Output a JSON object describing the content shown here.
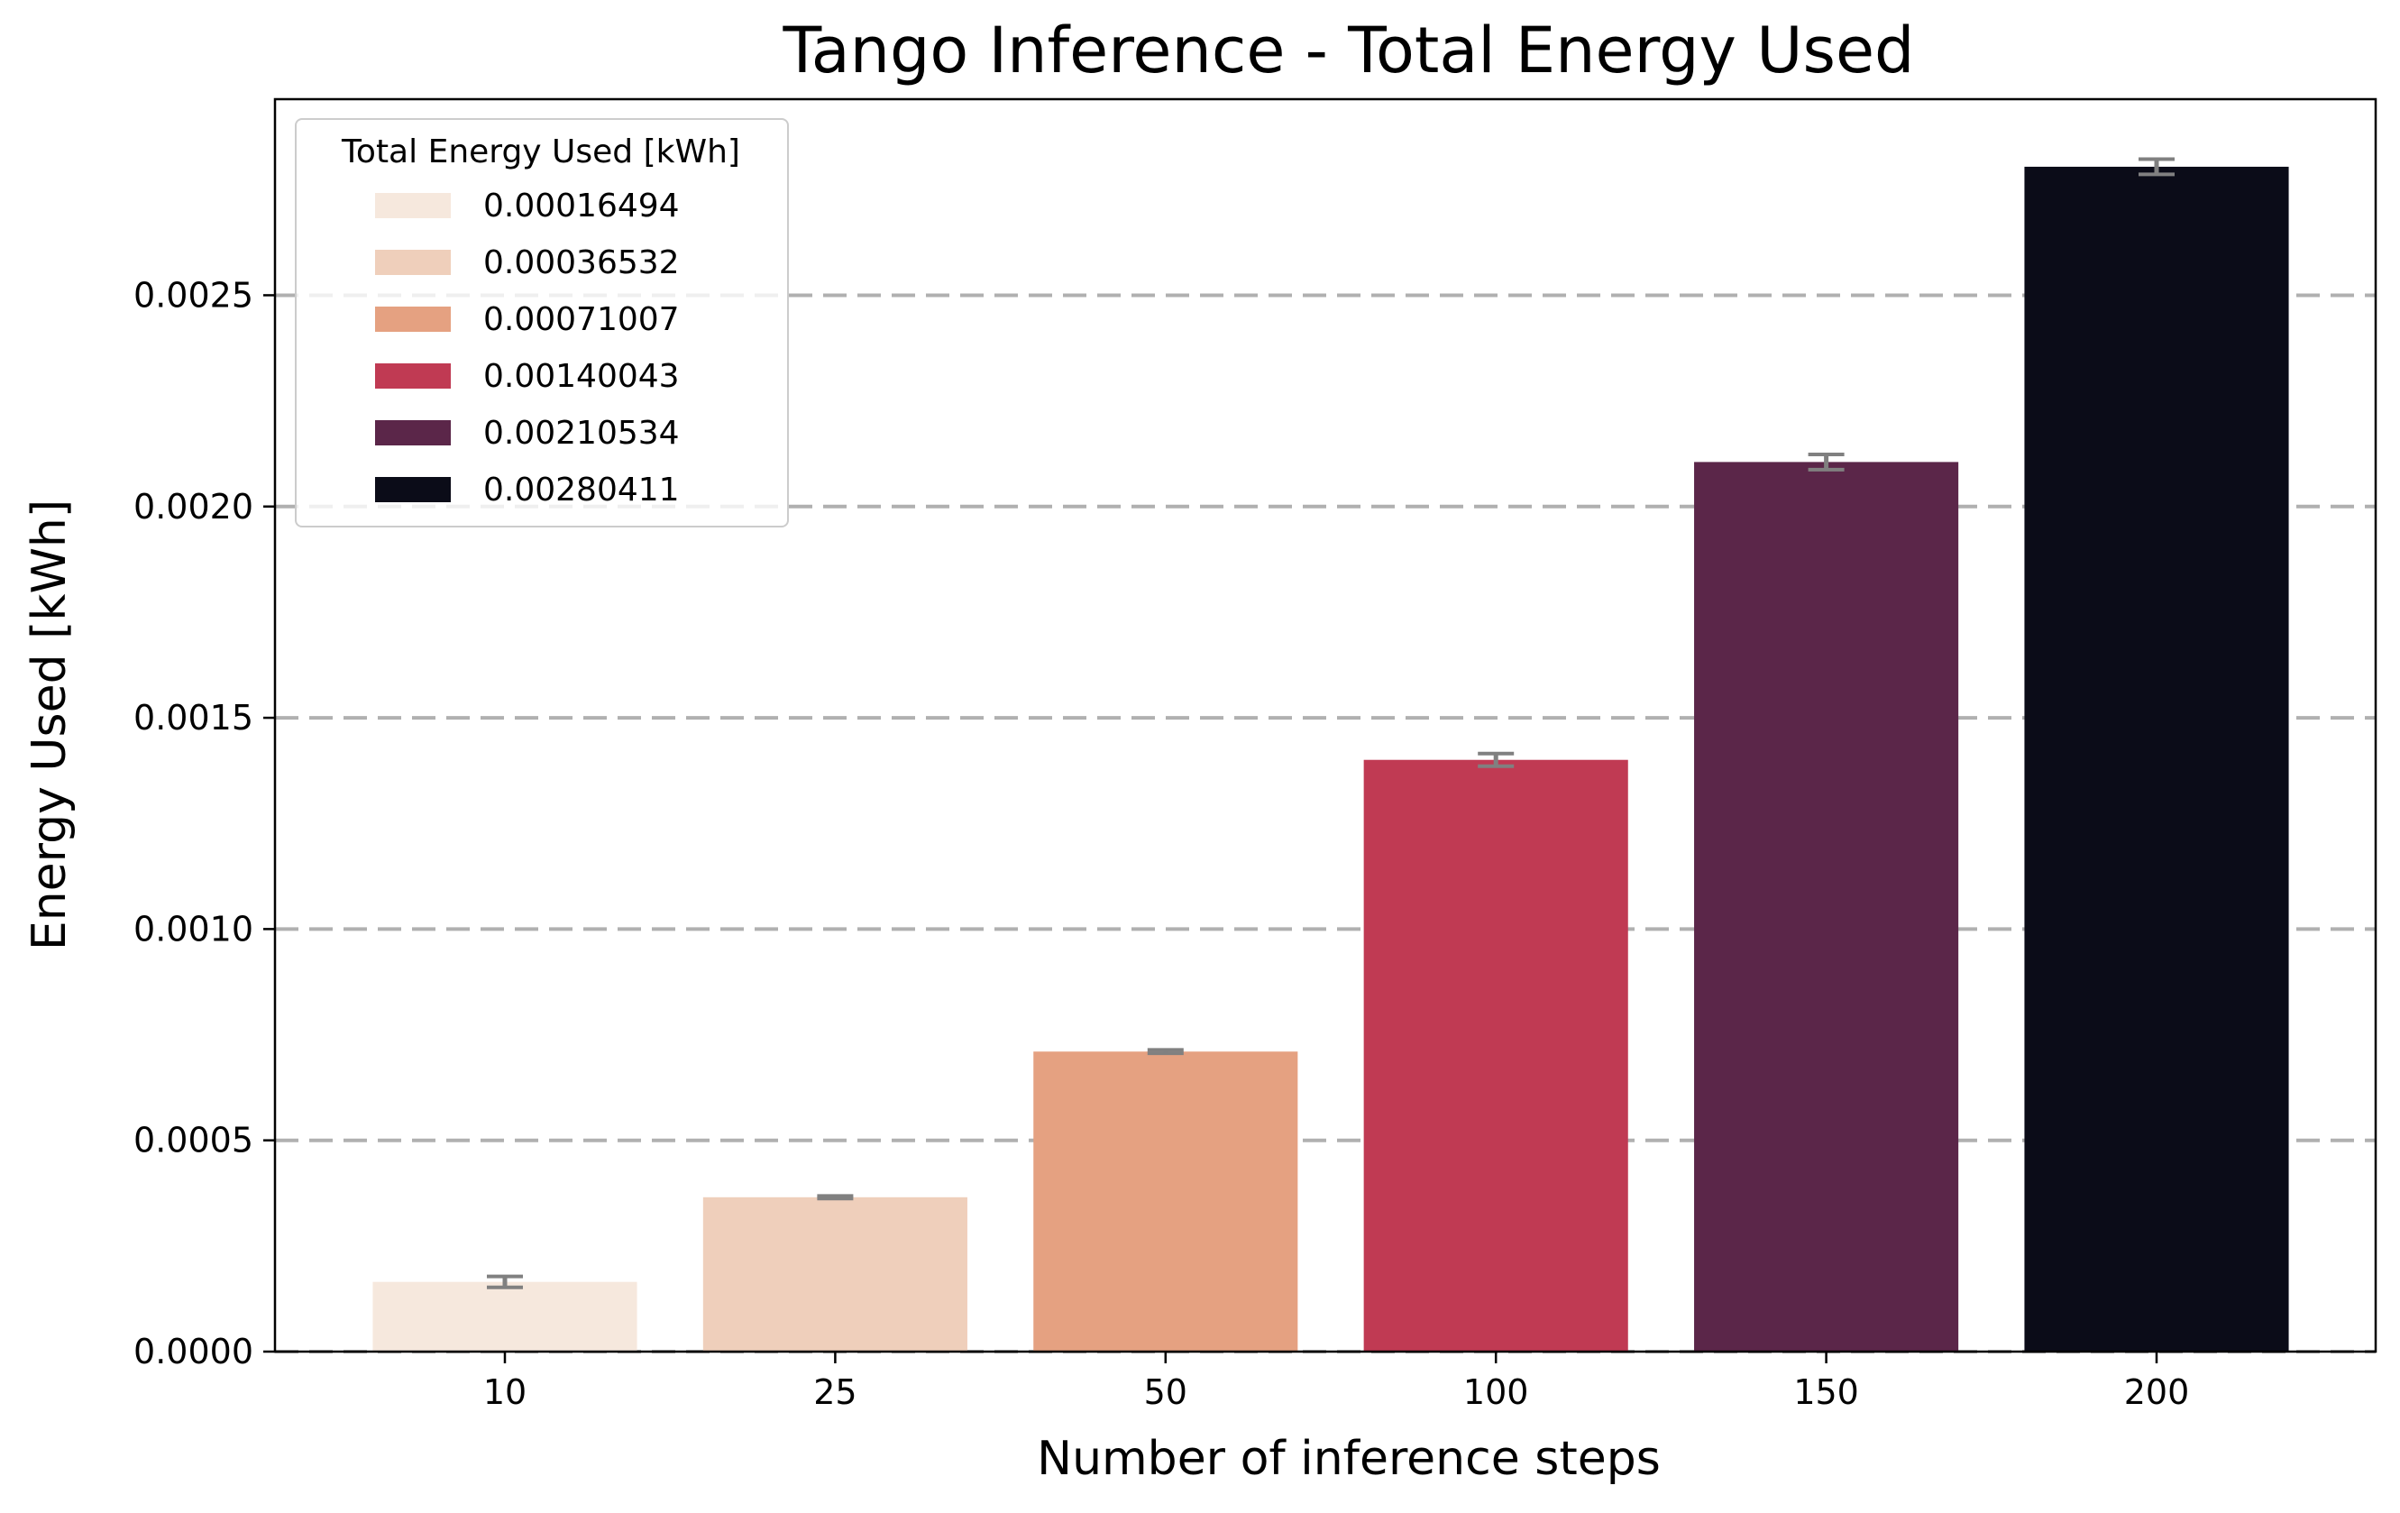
{
  "chart_data": {
    "type": "bar",
    "title": "Tango Inference - Total Energy Used",
    "xlabel": "Number of inference steps",
    "ylabel": "Energy Used [kWh]",
    "categories": [
      "10",
      "25",
      "50",
      "100",
      "150",
      "200"
    ],
    "values": [
      0.00016494,
      0.00036532,
      0.00071007,
      0.00140043,
      0.00210534,
      0.00280411
    ],
    "error": [
      1.3e-05,
      3e-06,
      4e-06,
      1.5e-05,
      1.8e-05,
      1.8e-05
    ],
    "colors": [
      "#f6e8dd",
      "#efcfbb",
      "#e5a181",
      "#c03a53",
      "#5b2649",
      "#0b0c18"
    ],
    "error_color": "#808080",
    "ylim": [
      0,
      0.002964
    ],
    "yticks": [
      "0.0000",
      "0.0005",
      "0.0010",
      "0.0015",
      "0.0020",
      "0.0025"
    ],
    "ytick_values": [
      0,
      0.0005,
      0.001,
      0.0015,
      0.002,
      0.0025
    ],
    "grid": "horizontal dashed",
    "grid_color": "#b0b0b0",
    "legend": {
      "title": "Total Energy Used [kWh]",
      "placement": "top-left",
      "entries": [
        "0.00016494",
        "0.00036532",
        "0.00071007",
        "0.00140043",
        "0.00210534",
        "0.00280411"
      ]
    }
  }
}
